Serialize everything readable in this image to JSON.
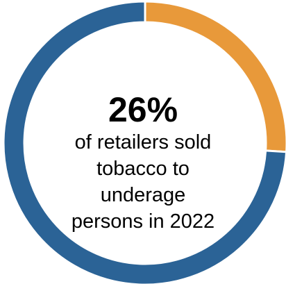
{
  "chart_data": {
    "type": "pie",
    "variant": "donut",
    "slices": [
      {
        "value": 26,
        "color": "#E8993A"
      },
      {
        "value": 74,
        "color": "#2B6396"
      }
    ],
    "center_label": {
      "value_text": "26%",
      "caption_lines": [
        "of retailers sold",
        "tobacco to",
        "underage",
        "persons in 2022"
      ]
    }
  }
}
